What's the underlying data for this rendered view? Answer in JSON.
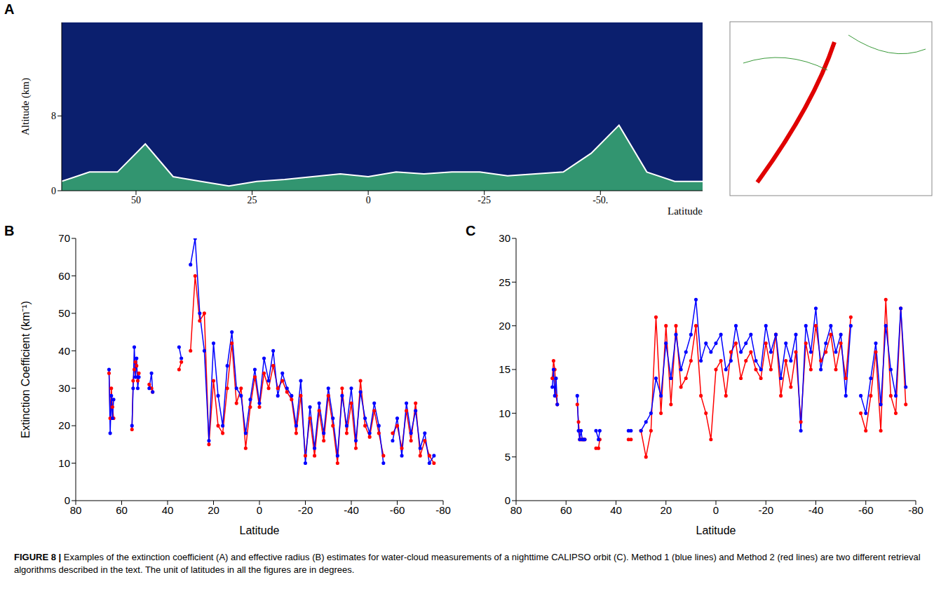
{
  "chart_data": [
    {
      "label": "A",
      "type": "area",
      "ylabel": "Altitude (km)",
      "xlabel": "Latitude",
      "xlim": [
        66,
        -72
      ],
      "xticks": [
        50,
        25,
        0,
        -25,
        {
          "value": -50,
          "label": "-50."
        }
      ],
      "ylim": [
        0,
        18
      ],
      "yticks": [
        0,
        8
      ],
      "grid": false,
      "x": [
        66,
        60,
        54,
        48,
        42,
        36,
        30,
        24,
        18,
        12,
        6,
        0,
        -6,
        -12,
        -18,
        -24,
        -30,
        -36,
        -42,
        -48,
        -54,
        -60,
        -66,
        -72
      ],
      "series": [
        {
          "color": "#3cb371",
          "values": [
            1,
            2,
            2,
            5,
            1.5,
            1,
            0.5,
            1,
            1.2,
            1.5,
            1.8,
            1.5,
            2,
            1.8,
            2,
            2,
            1.6,
            1.8,
            2,
            4,
            7,
            2,
            1,
            1
          ]
        }
      ]
    },
    {
      "label": "B",
      "type": "line",
      "ylabel": "Extinction Coefficient (km⁻¹)",
      "xlabel": "Latitude",
      "xlim": [
        80,
        -80
      ],
      "xticks": [
        80,
        60,
        40,
        20,
        0,
        -20,
        -40,
        -60,
        -80
      ],
      "ylim": [
        0,
        70
      ],
      "yticks": [
        0,
        10,
        20,
        30,
        40,
        50,
        60,
        70
      ],
      "grid": false,
      "marker": "circle",
      "x": [
        65.5,
        65,
        64.5,
        64,
        63.5,
        60,
        55.5,
        55,
        54.5,
        54,
        53.5,
        53,
        52.5,
        50,
        48,
        47,
        46.5,
        40,
        35,
        34,
        32,
        30,
        28,
        26,
        24,
        22,
        20,
        18,
        16,
        14,
        12,
        10,
        8,
        6,
        4,
        2,
        0,
        -2,
        -4,
        -6,
        -8,
        -10,
        -12,
        -14,
        -16,
        -18,
        -20,
        -22,
        -24,
        -26,
        -28,
        -30,
        -32,
        -34,
        -36,
        -38,
        -40,
        -42,
        -44,
        -46,
        -48,
        -50,
        -52,
        -54,
        -56,
        -58,
        -60,
        -62,
        -64,
        -66,
        -68,
        -70,
        -72,
        -74,
        -76
      ],
      "series": [
        {
          "color": "#0000ff",
          "values": [
            35,
            18,
            28,
            22,
            27,
            null,
            20,
            30,
            41,
            33,
            38,
            30,
            33,
            null,
            30,
            34,
            29,
            null,
            41,
            38,
            null,
            63,
            70,
            50,
            40,
            16,
            42,
            28,
            20,
            36,
            45,
            30,
            28,
            18,
            27,
            35,
            26,
            38,
            32,
            40,
            28,
            34,
            30,
            28,
            20,
            32,
            10,
            25,
            14,
            26,
            18,
            30,
            22,
            12,
            28,
            20,
            30,
            16,
            29,
            22,
            18,
            26,
            20,
            10,
            null,
            16,
            22,
            12,
            26,
            18,
            24,
            14,
            18,
            10,
            12
          ]
        },
        {
          "color": "#ff0000",
          "values": [
            34,
            22,
            30,
            25,
            22,
            null,
            19,
            32,
            35,
            37,
            36,
            32,
            34,
            null,
            31,
            30,
            29,
            null,
            35,
            37,
            null,
            40,
            60,
            48,
            50,
            15,
            32,
            20,
            18,
            30,
            42,
            26,
            30,
            14,
            25,
            33,
            25,
            34,
            30,
            36,
            30,
            32,
            29,
            27,
            18,
            28,
            12,
            22,
            12,
            24,
            16,
            28,
            20,
            10,
            30,
            18,
            26,
            14,
            32,
            20,
            17,
            24,
            18,
            12,
            null,
            18,
            20,
            14,
            24,
            16,
            26,
            12,
            16,
            12,
            10
          ]
        }
      ]
    },
    {
      "label": "C",
      "type": "line",
      "xlabel": "Latitude",
      "xlim": [
        80,
        -80
      ],
      "xticks": [
        80,
        60,
        40,
        20,
        0,
        -20,
        -40,
        -60,
        -80
      ],
      "ylim": [
        0,
        30
      ],
      "yticks": [
        0,
        5,
        10,
        15,
        20,
        25,
        30
      ],
      "grid": false,
      "marker": "circle",
      "x": [
        65.5,
        65,
        64.5,
        64,
        63.5,
        60,
        55.5,
        55,
        54.5,
        54,
        53.5,
        53,
        52.5,
        50,
        48,
        47,
        46.5,
        40,
        35,
        34,
        32,
        30,
        28,
        26,
        24,
        22,
        20,
        18,
        16,
        14,
        12,
        10,
        8,
        6,
        4,
        2,
        0,
        -2,
        -4,
        -6,
        -8,
        -10,
        -12,
        -14,
        -16,
        -18,
        -20,
        -22,
        -24,
        -26,
        -28,
        -30,
        -32,
        -34,
        -36,
        -38,
        -40,
        -42,
        -44,
        -46,
        -48,
        -50,
        -52,
        -54,
        -56,
        -58,
        -60,
        -62,
        -64,
        -66,
        -68,
        -70,
        -72,
        -74,
        -76
      ],
      "series": [
        {
          "color": "#0000ff",
          "values": [
            13,
            15,
            12,
            14,
            11,
            null,
            12,
            8,
            7,
            8,
            7,
            7,
            7,
            null,
            8,
            7,
            8,
            null,
            8,
            8,
            null,
            8,
            9,
            10,
            14,
            12,
            18,
            14,
            19,
            15,
            17,
            19,
            23,
            16,
            18,
            17,
            18,
            19,
            15,
            16,
            20,
            17,
            18,
            19,
            16,
            15,
            20,
            17,
            19,
            14,
            18,
            16,
            19,
            8,
            20,
            17,
            22,
            15,
            18,
            20,
            17,
            19,
            12,
            20,
            null,
            12,
            10,
            14,
            18,
            11,
            20,
            15,
            12,
            22,
            13
          ]
        },
        {
          "color": "#ff0000",
          "values": [
            14,
            16,
            15,
            12,
            11,
            null,
            11,
            9,
            7,
            7,
            7,
            7,
            7,
            null,
            6,
            6,
            7,
            null,
            7,
            7,
            null,
            8,
            5,
            8,
            21,
            10,
            20,
            11,
            20,
            13,
            14,
            16,
            20,
            12,
            10,
            7,
            15,
            16,
            12,
            17,
            18,
            14,
            16,
            17,
            15,
            14,
            18,
            15,
            19,
            12,
            16,
            13,
            17,
            9,
            18,
            15,
            20,
            16,
            17,
            19,
            15,
            18,
            14,
            21,
            null,
            10,
            8,
            12,
            17,
            8,
            23,
            12,
            10,
            22,
            11
          ]
        }
      ]
    }
  ],
  "caption_label": "FIGURE 8 |",
  "caption": "Examples of the extinction coefficient (A) and effective radius (B) estimates for water-cloud measurements of a nighttime CALIPSO orbit (C). Method 1 (blue lines) and Method 2 (red lines) are two different retrieval algorithms described in the text. The unit of latitudes in all the figures are in degrees."
}
